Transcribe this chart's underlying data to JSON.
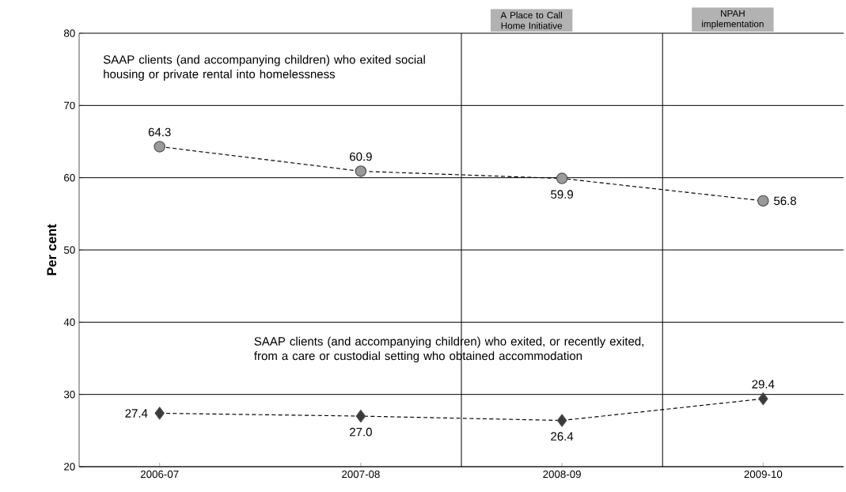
{
  "chart_data": {
    "type": "line",
    "ylabel": "Per cent",
    "categories": [
      "2006-07",
      "2007-08",
      "2008-09",
      "2009-10"
    ],
    "series": [
      {
        "color": "#9a9a9a",
        "marker": "circle",
        "values": [
          64.3,
          60.9,
          59.9,
          56.8
        ],
        "value_labels": [
          "64.3",
          "60.9",
          "59.9",
          "56.8"
        ]
      },
      {
        "color": "#3a3a3a",
        "marker": "diamond",
        "values": [
          27.4,
          27.0,
          26.4,
          29.4
        ],
        "value_labels": [
          "27.4",
          "27.0",
          "26.4",
          "29.4"
        ]
      }
    ],
    "line_style": "dotted",
    "ylim": [
      20,
      80
    ],
    "yticks": [
      20,
      30,
      40,
      50,
      60,
      70,
      80
    ],
    "grid": "y",
    "annotations": [
      "SAAP clients (and accompanying children) who exited social housing or private rental into homelessness",
      "SAAP clients (and accompanying children) who exited, or recently exited, from a care or custodial setting who obtained accommodation",
      "A Place to Call Home Initiative",
      "NPAH implementation"
    ]
  }
}
